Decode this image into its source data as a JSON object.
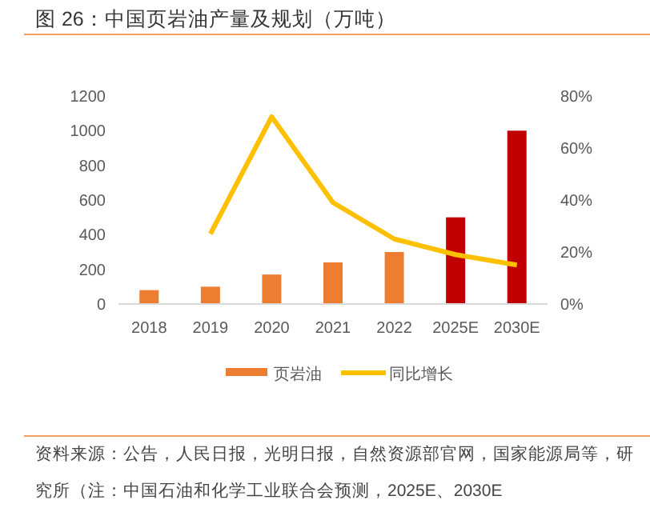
{
  "chart_data": {
    "type": "bar",
    "title": "图 26：中国页岩油产量及规划（万吨）",
    "categories": [
      "2018",
      "2019",
      "2020",
      "2021",
      "2022",
      "2025E",
      "2030E"
    ],
    "series": [
      {
        "name": "页岩油",
        "color": "#ed7d31",
        "colors": [
          "#ed7d31",
          "#ed7d31",
          "#ed7d31",
          "#ed7d31",
          "#ed7d31",
          "#c00000",
          "#c00000"
        ],
        "values": [
          80,
          100,
          170,
          240,
          300,
          500,
          1000
        ]
      },
      {
        "name": "同比增长",
        "type": "line",
        "axis": "y2",
        "color": "#ffc000",
        "values": [
          null,
          27,
          72,
          39,
          25,
          19,
          15
        ]
      }
    ],
    "ylim": [
      0,
      1200
    ],
    "yticks": [
      0,
      200,
      400,
      600,
      800,
      1000,
      1200
    ],
    "y2lim": [
      0,
      80
    ],
    "y2ticks": [
      {
        "value": 0,
        "label": "0%"
      },
      {
        "value": 20,
        "label": "20%"
      },
      {
        "value": 40,
        "label": "40%"
      },
      {
        "value": 60,
        "label": "60%"
      },
      {
        "value": 80,
        "label": "80%"
      }
    ],
    "grid": false,
    "legend": "bottom",
    "marker": "none",
    "annotations": [
      "资料来源：公告，人民日报，光明日报，自然资源部官网，国家能源局等，研究所（注：中国石油和化学工业联合会预测，2025E、2030E"
    ]
  }
}
